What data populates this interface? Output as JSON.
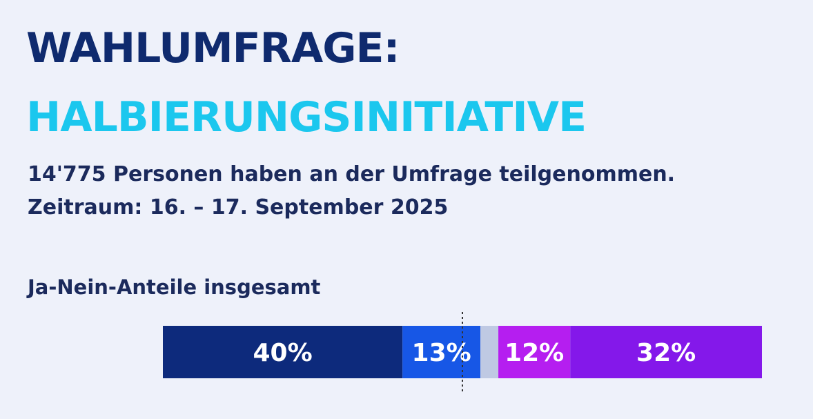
{
  "header": {
    "title_line1": "WAHLUMFRAGE:",
    "title_line2": "HALBIERUNGSINITIATIVE",
    "subtitle_line1": "14'775 Personen haben an der Umfrage teilgenommen.",
    "subtitle_line2": "Zeitraum:  16. – 17. September 2025"
  },
  "chart_data": {
    "type": "bar",
    "title": "Ja-Nein-Anteile insgesamt",
    "orientation": "horizontal-stacked",
    "midline": true,
    "segments": [
      {
        "value": 40,
        "label": "40%",
        "color": "#0d2a7c"
      },
      {
        "value": 13,
        "label": "13%",
        "color": "#1757e6"
      },
      {
        "value": 3,
        "label": "",
        "color": "#bfc9e3"
      },
      {
        "value": 12,
        "label": "12%",
        "color": "#b51ef0"
      },
      {
        "value": 32,
        "label": "32%",
        "color": "#8418ea"
      }
    ]
  }
}
